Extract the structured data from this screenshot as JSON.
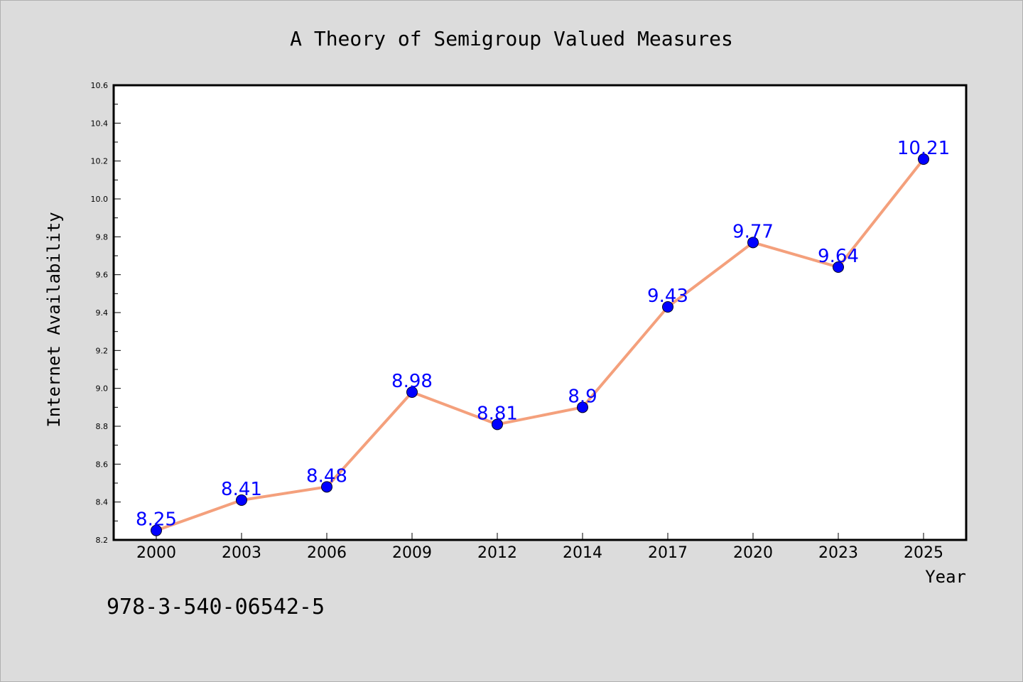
{
  "chart_data": {
    "type": "line",
    "title": "A Theory of Semigroup Valued Measures",
    "xlabel": "Year",
    "ylabel": "Internet Availability",
    "categories": [
      "2000",
      "2003",
      "2006",
      "2009",
      "2012",
      "2014",
      "2017",
      "2020",
      "2023",
      "2025"
    ],
    "series": [
      {
        "values": [
          8.25,
          8.41,
          8.48,
          8.98,
          8.81,
          8.9,
          9.43,
          9.77,
          9.64,
          10.21
        ],
        "line_color": "#f4a07c",
        "marker_color": "#0000ff",
        "label_color": "#0000ff"
      }
    ],
    "data_labels": [
      "8.25",
      "8.41",
      "8.48",
      "8.98",
      "8.81",
      "8.9",
      "9.43",
      "9.77",
      "9.64",
      "10.21"
    ],
    "ylim": [
      8.2,
      10.6
    ],
    "yticks": [
      "8.2",
      "8.4",
      "8.6",
      "8.8",
      "9.0",
      "9.2",
      "9.4",
      "9.6",
      "9.8",
      "10.0",
      "10.2",
      "10.4",
      "10.6"
    ],
    "grid": false,
    "legend": "none"
  },
  "annotation": {
    "isbn": "978-3-540-06542-5"
  }
}
